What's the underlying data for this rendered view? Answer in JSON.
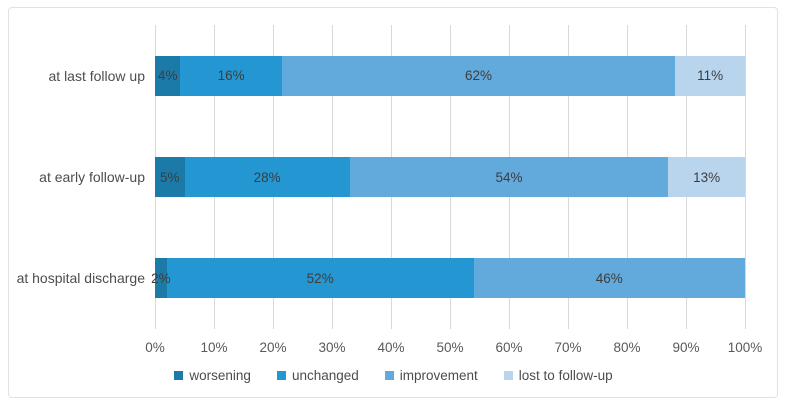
{
  "chart_data": {
    "type": "bar",
    "orientation": "horizontal",
    "stacked": true,
    "title": "",
    "xlabel": "",
    "ylabel": "",
    "xlim": [
      0,
      100
    ],
    "grid": true,
    "legend_position": "bottom",
    "categories": [
      "at last follow up",
      "at early follow-up",
      "at hospital discharge"
    ],
    "series": [
      {
        "name": "worsening",
        "color": "#1c7aa8",
        "values": [
          4,
          5,
          2
        ],
        "labels": [
          "4%",
          "5%",
          "2%"
        ]
      },
      {
        "name": "unchanged",
        "color": "#2497d3",
        "values": [
          16,
          28,
          52
        ],
        "labels": [
          "16%",
          "28%",
          "52%"
        ]
      },
      {
        "name": "improvement",
        "color": "#62a9dc",
        "values": [
          62,
          54,
          46
        ],
        "labels": [
          "62%",
          "54%",
          "46%"
        ]
      },
      {
        "name": "lost to follow-up",
        "color": "#b9d5ed",
        "values": [
          11,
          13,
          0
        ],
        "labels": [
          "11%",
          "13%",
          ""
        ]
      }
    ],
    "x_ticks": [
      "0%",
      "10%",
      "20%",
      "30%",
      "40%",
      "50%",
      "60%",
      "70%",
      "80%",
      "90%",
      "100%"
    ],
    "gridline_color": "#d9d9d9",
    "frame_color": "#e2e2e2"
  }
}
